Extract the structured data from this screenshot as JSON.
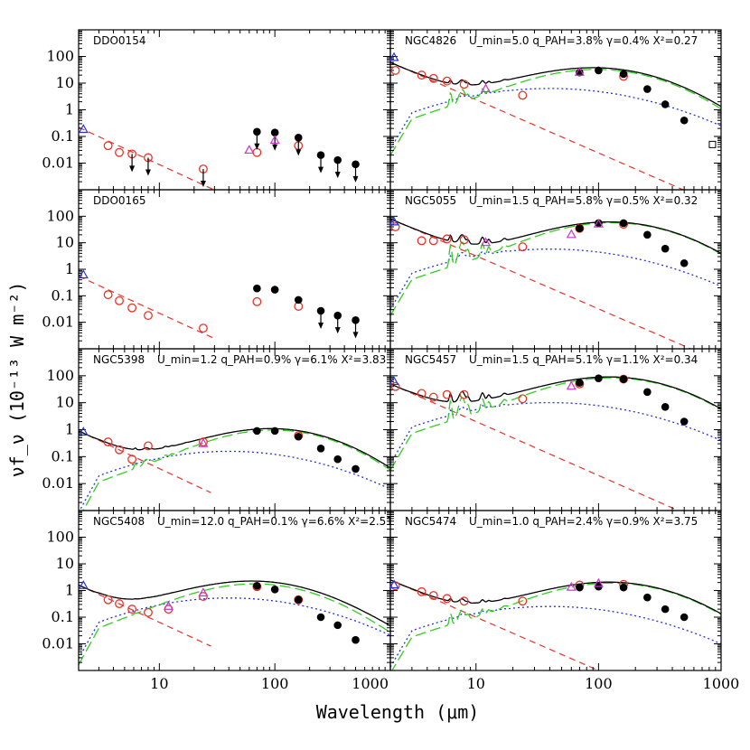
{
  "chart_data": {
    "type": "scatter",
    "xlabel": "Wavelength (μm)",
    "ylabel": "νf_ν (10⁻¹³ W m⁻²)",
    "x_scale": "log",
    "y_scale": "log",
    "xlim": [
      2,
      1000
    ],
    "ylim": [
      0.001,
      1000
    ],
    "x_ticklabels": [
      "10",
      "100",
      "1000"
    ],
    "y_ticklabels": [
      "0.01",
      "0.1",
      "1",
      "10",
      "100"
    ],
    "panels": [
      {
        "name": "DDO0154",
        "info": "",
        "stellar": {
          "amp": 0.22,
          "x0": 2,
          "end": 30
        },
        "dust": null,
        "circles": [
          [
            3.6,
            0.045
          ],
          [
            4.5,
            0.025
          ],
          [
            5.8,
            0.022
          ],
          [
            8,
            0.016
          ],
          [
            24,
            0.006
          ],
          [
            70,
            0.025
          ],
          [
            160,
            0.045
          ]
        ],
        "circle_arrows": [
          5.8,
          8,
          24
        ],
        "dots": [
          [
            70,
            0.15
          ],
          [
            100,
            0.14
          ],
          [
            160,
            0.09
          ],
          [
            250,
            0.02
          ],
          [
            350,
            0.013
          ],
          [
            500,
            0.009
          ]
        ],
        "dot_arrows": [
          70,
          100,
          160,
          250,
          350,
          500
        ],
        "triangles_blue": [
          [
            2.2,
            0.18
          ]
        ],
        "triangles_mag": [
          [
            60,
            0.03
          ],
          [
            100,
            0.07
          ]
        ],
        "squares": []
      },
      {
        "name": "NGC4826",
        "info": "U_min=5.0  q_PAH=3.8%  γ=0.4%  X²=0.27",
        "stellar": {
          "amp": 60,
          "x0": 2,
          "end": 1000
        },
        "dust": {
          "peak": 30,
          "lpeak": 100,
          "ratio": 0.3,
          "pah": 4
        },
        "circles": [
          [
            2.2,
            30
          ],
          [
            3.6,
            20
          ],
          [
            4.5,
            15
          ],
          [
            5.8,
            12
          ],
          [
            8,
            9
          ],
          [
            24,
            3.5
          ],
          [
            160,
            18
          ]
        ],
        "circle_arrows": [],
        "dots": [
          [
            70,
            25
          ],
          [
            100,
            30
          ],
          [
            160,
            22
          ],
          [
            250,
            6
          ],
          [
            350,
            1.6
          ],
          [
            500,
            0.4
          ]
        ],
        "dot_arrows": [],
        "triangles_blue": [
          [
            1.3,
            90
          ]
        ],
        "triangles_mag": [
          [
            12,
            6
          ],
          [
            70,
            25
          ]
        ],
        "squares": [
          [
            850,
            0.05
          ]
        ]
      },
      {
        "name": "DDO0165",
        "info": "",
        "stellar": {
          "amp": 0.55,
          "x0": 2,
          "end": 30
        },
        "dust": null,
        "circles": [
          [
            3.6,
            0.11
          ],
          [
            4.5,
            0.065
          ],
          [
            5.8,
            0.035
          ],
          [
            8,
            0.018
          ],
          [
            24,
            0.006
          ],
          [
            70,
            0.06
          ],
          [
            160,
            0.04
          ]
        ],
        "circle_arrows": [],
        "dots": [
          [
            70,
            0.19
          ],
          [
            100,
            0.17
          ],
          [
            160,
            0.07
          ],
          [
            250,
            0.027
          ],
          [
            350,
            0.018
          ],
          [
            500,
            0.012
          ]
        ],
        "dot_arrows": [
          250,
          350,
          500
        ],
        "triangles_blue": [
          [
            2.2,
            0.6
          ]
        ],
        "triangles_mag": [],
        "squares": []
      },
      {
        "name": "NGC5055",
        "info": "U_min=1.5  q_PAH=5.8%  γ=0.5%  X²=0.32",
        "stellar": {
          "amp": 80,
          "x0": 2,
          "end": 1000
        },
        "dust": {
          "peak": 55,
          "lpeak": 130,
          "ratio": 0.15,
          "pah": 5
        },
        "circles": [
          [
            2.2,
            40
          ],
          [
            3.6,
            12
          ],
          [
            4.5,
            12
          ],
          [
            5.8,
            14
          ],
          [
            8,
            13
          ],
          [
            24,
            7
          ],
          [
            70,
            35
          ],
          [
            160,
            50
          ]
        ],
        "circle_arrows": [],
        "dots": [
          [
            70,
            35
          ],
          [
            100,
            55
          ],
          [
            160,
            55
          ],
          [
            250,
            20
          ],
          [
            350,
            6
          ],
          [
            500,
            1.7
          ]
        ],
        "dot_arrows": [],
        "triangles_blue": [
          [
            1.3,
            60
          ]
        ],
        "triangles_mag": [
          [
            12,
            10
          ],
          [
            60,
            20
          ],
          [
            100,
            50
          ]
        ],
        "squares": []
      },
      {
        "name": "NGC5398",
        "info": "U_min=1.2  q_PAH=0.9%  γ=6.1%  X²=3.83",
        "stellar": {
          "amp": 0.9,
          "x0": 2,
          "end": 28
        },
        "dust": {
          "peak": 0.9,
          "lpeak": 100,
          "ratio": 0.25,
          "pah": 1
        },
        "circles": [
          [
            3.6,
            0.35
          ],
          [
            4.5,
            0.18
          ],
          [
            5.8,
            0.08
          ],
          [
            8,
            0.25
          ],
          [
            24,
            0.35
          ],
          [
            160,
            0.6
          ]
        ],
        "circle_arrows": [],
        "dots": [
          [
            70,
            0.9
          ],
          [
            100,
            0.9
          ],
          [
            160,
            0.55
          ],
          [
            250,
            0.2
          ],
          [
            350,
            0.08
          ],
          [
            500,
            0.035
          ]
        ],
        "dot_arrows": [],
        "triangles_blue": [
          [
            2.2,
            0.8
          ]
        ],
        "triangles_mag": [
          [
            24,
            0.3
          ]
        ],
        "squares": []
      },
      {
        "name": "NGC5457",
        "info": "U_min=1.5  q_PAH=5.1%  γ=1.1%  X²=0.34",
        "stellar": {
          "amp": 50,
          "x0": 2,
          "end": 600
        },
        "dust": {
          "peak": 80,
          "lpeak": 130,
          "ratio": 0.18,
          "pah": 5
        },
        "circles": [
          [
            2.2,
            40
          ],
          [
            3.6,
            22
          ],
          [
            4.5,
            16
          ],
          [
            5.8,
            20
          ],
          [
            8,
            20
          ],
          [
            24,
            14
          ],
          [
            70,
            50
          ],
          [
            160,
            75
          ]
        ],
        "circle_arrows": [],
        "dots": [
          [
            70,
            55
          ],
          [
            100,
            80
          ],
          [
            160,
            75
          ],
          [
            250,
            25
          ],
          [
            350,
            7
          ],
          [
            500,
            2
          ]
        ],
        "dot_arrows": [],
        "triangles_blue": [
          [
            1.3,
            60
          ]
        ],
        "triangles_mag": [
          [
            60,
            40
          ]
        ],
        "squares": []
      },
      {
        "name": "NGC5408",
        "info": "U_min=12.0  q_PAH=0.1%  γ=6.6%  X²=2.51",
        "stellar": {
          "amp": 1.6,
          "x0": 2,
          "end": 28
        },
        "dust": {
          "peak": 1.5,
          "lpeak": 70,
          "ratio": 0.5,
          "pah": 0.2
        },
        "circles": [
          [
            3.6,
            0.45
          ],
          [
            4.5,
            0.32
          ],
          [
            5.8,
            0.2
          ],
          [
            8,
            0.15
          ],
          [
            12,
            0.2
          ],
          [
            24,
            0.6
          ],
          [
            70,
            1.4
          ],
          [
            160,
            0.45
          ]
        ],
        "circle_arrows": [],
        "dots": [
          [
            70,
            1.5
          ],
          [
            100,
            1.1
          ],
          [
            160,
            0.45
          ],
          [
            250,
            0.1
          ],
          [
            350,
            0.05
          ],
          [
            500,
            0.014
          ]
        ],
        "dot_arrows": [],
        "triangles_blue": [
          [
            2.2,
            1.5
          ]
        ],
        "triangles_mag": [
          [
            12,
            0.25
          ],
          [
            24,
            0.8
          ]
        ],
        "squares": []
      },
      {
        "name": "NGC5474",
        "info": "U_min=1.0  q_PAH=2.4%  γ=0.9%  X²=3.75",
        "stellar": {
          "amp": 2.5,
          "x0": 2,
          "end": 220
        },
        "dust": {
          "peak": 1.8,
          "lpeak": 130,
          "ratio": 0.2,
          "pah": 2
        },
        "circles": [
          [
            2.2,
            1.5
          ],
          [
            3.6,
            0.9
          ],
          [
            4.5,
            0.65
          ],
          [
            5.8,
            0.5
          ],
          [
            8,
            0.4
          ],
          [
            24,
            0.4
          ],
          [
            70,
            1.6
          ],
          [
            160,
            1.7
          ]
        ],
        "circle_arrows": [],
        "dots": [
          [
            70,
            1.3
          ],
          [
            100,
            1.4
          ],
          [
            160,
            1.3
          ],
          [
            250,
            0.55
          ],
          [
            350,
            0.2
          ],
          [
            500,
            0.1
          ]
        ],
        "dot_arrows": [],
        "triangles_blue": [
          [
            1.3,
            1.6
          ]
        ],
        "triangles_mag": [
          [
            60,
            1.3
          ],
          [
            100,
            1.8
          ]
        ],
        "squares": []
      }
    ]
  }
}
